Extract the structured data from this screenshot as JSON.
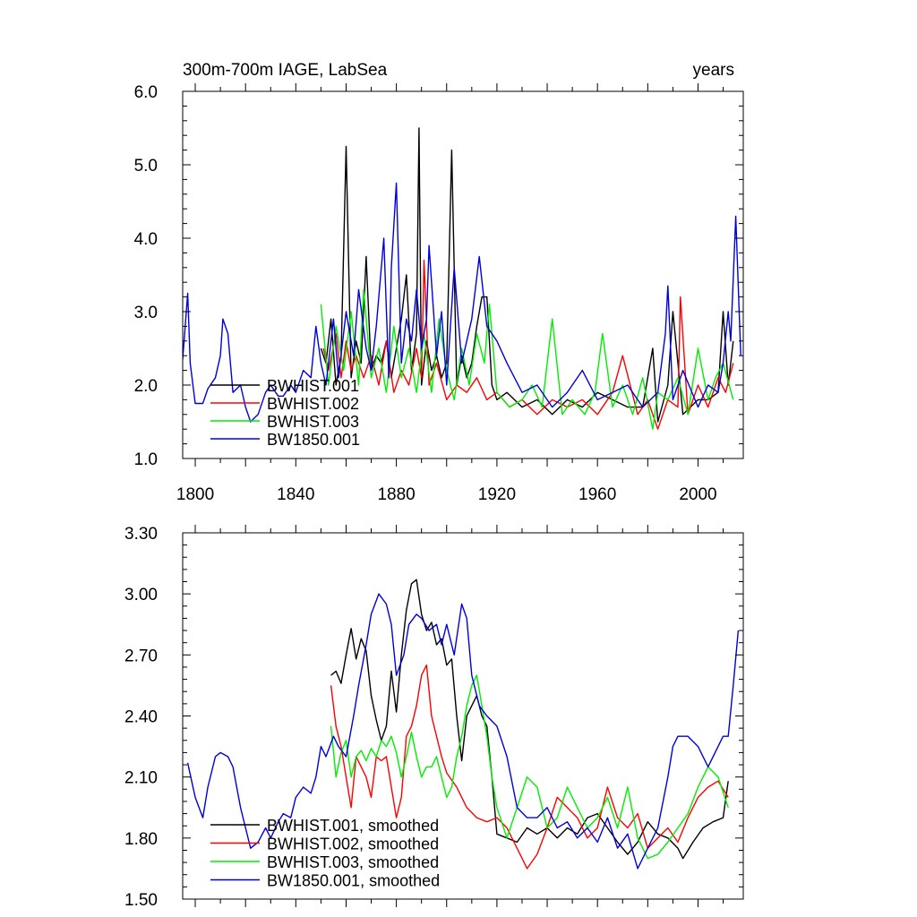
{
  "chart_data": [
    {
      "type": "line",
      "title_left": "300m-700m IAGE, LabSea",
      "title_right": "years",
      "xlim": [
        1795,
        2018
      ],
      "ylim": [
        1.0,
        6.0
      ],
      "yticks": [
        "1.0",
        "2.0",
        "3.0",
        "4.0",
        "5.0",
        "6.0"
      ],
      "xticks": [
        "1800",
        "1840",
        "1880",
        "1920",
        "1960",
        "2000"
      ],
      "legend_position": "bottom-left",
      "series": [
        {
          "name": "BWHIST.001",
          "color": "#000000",
          "x": [
            1850,
            1852,
            1854,
            1856,
            1858,
            1860,
            1862,
            1864,
            1866,
            1868,
            1870,
            1872,
            1874,
            1876,
            1878,
            1880,
            1882,
            1884,
            1886,
            1888,
            1889,
            1890,
            1892,
            1894,
            1896,
            1898,
            1900,
            1902,
            1904,
            1906,
            1908,
            1910,
            1912,
            1914,
            1916,
            1918,
            1920,
            1924,
            1930,
            1936,
            1942,
            1948,
            1954,
            1960,
            1966,
            1972,
            1978,
            1982,
            1984,
            1988,
            1990,
            1994,
            2000,
            2004,
            2008,
            2010,
            2012,
            2014
          ],
          "values": [
            2.5,
            2.3,
            2.9,
            2.0,
            2.4,
            5.25,
            2.1,
            2.6,
            2.3,
            3.75,
            2.2,
            2.4,
            2.3,
            2.6,
            2.1,
            2.5,
            2.9,
            3.5,
            2.2,
            2.7,
            5.5,
            2.0,
            2.6,
            2.2,
            2.4,
            2.1,
            2.3,
            5.2,
            2.0,
            2.4,
            2.1,
            2.3,
            2.8,
            3.2,
            3.2,
            2.0,
            1.8,
            1.9,
            1.7,
            1.8,
            1.6,
            1.8,
            1.7,
            1.9,
            1.8,
            1.7,
            1.7,
            2.5,
            1.5,
            2.0,
            3.0,
            1.6,
            1.8,
            1.8,
            1.9,
            3.0,
            2.0,
            2.6
          ]
        },
        {
          "name": "BWHIST.002",
          "color": "#ff0000",
          "x": [
            1851,
            1853,
            1856,
            1858,
            1860,
            1862,
            1864,
            1867,
            1870,
            1873,
            1876,
            1879,
            1882,
            1885,
            1888,
            1890,
            1891,
            1893,
            1896,
            1900,
            1904,
            1908,
            1912,
            1916,
            1920,
            1925,
            1930,
            1936,
            1942,
            1948,
            1954,
            1960,
            1966,
            1970,
            1976,
            1980,
            1984,
            1988,
            1992,
            1993,
            1996,
            2000,
            2004,
            2008,
            2011,
            2014
          ],
          "values": [
            2.5,
            2.2,
            2.7,
            2.1,
            2.6,
            2.2,
            2.4,
            2.1,
            2.4,
            2.0,
            2.6,
            1.9,
            2.2,
            2.0,
            2.5,
            2.1,
            3.7,
            2.0,
            2.3,
            1.8,
            2.0,
            1.9,
            2.1,
            1.8,
            1.9,
            1.7,
            1.8,
            1.6,
            1.8,
            1.7,
            1.8,
            1.6,
            1.9,
            2.4,
            1.6,
            1.8,
            1.4,
            1.8,
            1.7,
            3.2,
            1.6,
            2.0,
            1.7,
            2.1,
            1.9,
            2.3
          ]
        },
        {
          "name": "BWHIST.003",
          "color": "#00ee00",
          "x": [
            1850,
            1853,
            1856,
            1859,
            1862,
            1865,
            1867,
            1870,
            1873,
            1876,
            1879,
            1882,
            1885,
            1888,
            1891,
            1894,
            1897,
            1900,
            1903,
            1906,
            1909,
            1912,
            1915,
            1917,
            1920,
            1925,
            1930,
            1934,
            1938,
            1942,
            1946,
            1950,
            1955,
            1959,
            1962,
            1966,
            1970,
            1974,
            1978,
            1982,
            1984,
            1988,
            1992,
            1996,
            2000,
            2004,
            2007,
            2010,
            2014
          ],
          "values": [
            3.1,
            2.0,
            2.8,
            2.2,
            3.0,
            2.0,
            3.3,
            2.1,
            2.5,
            1.9,
            2.8,
            2.1,
            2.5,
            1.9,
            2.7,
            1.9,
            2.9,
            2.2,
            1.8,
            2.5,
            2.0,
            2.7,
            2.3,
            3.1,
            1.9,
            1.7,
            1.8,
            2.0,
            1.7,
            2.9,
            1.6,
            1.8,
            1.6,
            1.9,
            2.7,
            1.7,
            2.0,
            1.6,
            2.1,
            1.4,
            1.9,
            1.8,
            2.1,
            1.6,
            2.5,
            1.8,
            2.1,
            2.3,
            1.8
          ]
        },
        {
          "name": "BW1850.001",
          "color": "#0000dd",
          "x": [
            1795,
            1797,
            1798,
            1800,
            1803,
            1805,
            1808,
            1810,
            1811,
            1813,
            1815,
            1818,
            1820,
            1822,
            1825,
            1828,
            1830,
            1833,
            1835,
            1838,
            1840,
            1843,
            1846,
            1848,
            1850,
            1852,
            1855,
            1857,
            1860,
            1863,
            1865,
            1868,
            1870,
            1872,
            1875,
            1877,
            1878,
            1880,
            1882,
            1884,
            1886,
            1888,
            1890,
            1892,
            1893,
            1896,
            1898,
            1900,
            1903,
            1906,
            1908,
            1910,
            1913,
            1916,
            1920,
            1924,
            1930,
            1936,
            1942,
            1948,
            1954,
            1960,
            1966,
            1972,
            1978,
            1984,
            1987,
            1988,
            1990,
            1994,
            2000,
            2004,
            2008,
            2010,
            2012,
            2013,
            2015,
            2017
          ],
          "values": [
            2.35,
            3.25,
            2.3,
            1.75,
            1.75,
            1.95,
            2.1,
            2.4,
            2.9,
            2.7,
            1.9,
            2.0,
            1.7,
            1.5,
            1.6,
            1.9,
            2.0,
            1.85,
            1.85,
            2.0,
            1.9,
            2.2,
            2.1,
            2.8,
            2.3,
            2.0,
            2.9,
            2.1,
            3.0,
            2.4,
            3.3,
            2.5,
            2.2,
            2.8,
            4.0,
            2.1,
            3.6,
            4.75,
            2.3,
            2.9,
            2.6,
            3.3,
            2.5,
            2.9,
            3.9,
            2.4,
            3.0,
            2.0,
            3.6,
            2.3,
            2.6,
            2.9,
            3.75,
            2.8,
            2.6,
            2.3,
            1.9,
            2.0,
            1.7,
            1.9,
            2.2,
            1.8,
            1.9,
            2.0,
            1.7,
            1.9,
            2.7,
            3.35,
            1.8,
            2.2,
            1.7,
            2.0,
            1.9,
            2.3,
            3.0,
            2.6,
            4.3,
            2.4
          ]
        }
      ]
    },
    {
      "type": "line",
      "xlim": [
        1795,
        2018
      ],
      "ylim": [
        1.5,
        3.3
      ],
      "yticks": [
        "1.50",
        "1.80",
        "2.10",
        "2.40",
        "2.70",
        "3.00",
        "3.30"
      ],
      "legend_position": "bottom-left",
      "series": [
        {
          "name": "BWHIST.001, smoothed",
          "color": "#000000",
          "x": [
            1854,
            1856,
            1858,
            1860,
            1862,
            1864,
            1866,
            1868,
            1870,
            1872,
            1874,
            1876,
            1878,
            1880,
            1882,
            1884,
            1886,
            1888,
            1890,
            1892,
            1894,
            1896,
            1898,
            1900,
            1902,
            1904,
            1906,
            1908,
            1910,
            1912,
            1914,
            1916,
            1918,
            1920,
            1924,
            1928,
            1932,
            1936,
            1940,
            1944,
            1948,
            1952,
            1956,
            1960,
            1964,
            1968,
            1972,
            1976,
            1980,
            1984,
            1988,
            1992,
            1994,
            1998,
            2002,
            2006,
            2010,
            2012
          ],
          "values": [
            2.6,
            2.62,
            2.56,
            2.7,
            2.83,
            2.68,
            2.78,
            2.72,
            2.5,
            2.38,
            2.28,
            2.35,
            2.62,
            2.42,
            2.7,
            2.92,
            3.05,
            3.07,
            2.9,
            2.82,
            2.86,
            2.75,
            2.78,
            2.65,
            2.68,
            2.4,
            2.18,
            2.4,
            2.45,
            2.5,
            2.4,
            2.35,
            2.1,
            1.82,
            1.8,
            1.78,
            1.85,
            1.82,
            1.85,
            1.8,
            1.85,
            1.82,
            1.9,
            1.92,
            1.85,
            1.78,
            1.72,
            1.78,
            1.88,
            1.82,
            1.8,
            1.75,
            1.7,
            1.78,
            1.85,
            1.88,
            1.9,
            2.08
          ]
        },
        {
          "name": "BWHIST.002, smoothed",
          "color": "#ff0000",
          "x": [
            1854,
            1856,
            1858,
            1860,
            1862,
            1864,
            1866,
            1868,
            1870,
            1872,
            1874,
            1876,
            1878,
            1880,
            1882,
            1884,
            1886,
            1888,
            1890,
            1892,
            1894,
            1896,
            1898,
            1900,
            1904,
            1908,
            1912,
            1916,
            1920,
            1924,
            1928,
            1932,
            1936,
            1940,
            1944,
            1948,
            1952,
            1956,
            1960,
            1964,
            1968,
            1972,
            1976,
            1980,
            1984,
            1988,
            1992,
            1996,
            2000,
            2004,
            2008,
            2012
          ],
          "values": [
            2.55,
            2.35,
            2.25,
            2.1,
            1.95,
            2.2,
            2.15,
            2.1,
            2.0,
            2.2,
            2.18,
            2.2,
            2.05,
            1.9,
            2.0,
            2.3,
            2.35,
            2.45,
            2.6,
            2.65,
            2.4,
            2.3,
            2.2,
            2.12,
            2.05,
            1.95,
            1.9,
            1.88,
            1.9,
            1.85,
            1.75,
            1.65,
            1.72,
            1.85,
            2.0,
            1.95,
            1.9,
            1.8,
            1.85,
            2.05,
            1.9,
            1.85,
            1.92,
            1.75,
            1.8,
            1.85,
            1.78,
            1.9,
            2.0,
            2.05,
            2.08,
            2.0
          ]
        },
        {
          "name": "BWHIST.003, smoothed",
          "color": "#00ee00",
          "x": [
            1854,
            1856,
            1858,
            1860,
            1862,
            1864,
            1866,
            1868,
            1870,
            1872,
            1874,
            1876,
            1878,
            1880,
            1882,
            1884,
            1886,
            1888,
            1890,
            1892,
            1894,
            1896,
            1898,
            1900,
            1902,
            1904,
            1906,
            1908,
            1910,
            1912,
            1914,
            1916,
            1918,
            1920,
            1924,
            1928,
            1932,
            1936,
            1940,
            1944,
            1948,
            1952,
            1956,
            1960,
            1964,
            1968,
            1972,
            1976,
            1980,
            1984,
            1988,
            1992,
            1996,
            2000,
            2004,
            2008,
            2012
          ],
          "values": [
            2.35,
            2.1,
            2.22,
            2.28,
            2.1,
            2.2,
            2.23,
            2.18,
            2.24,
            2.2,
            2.28,
            2.25,
            2.3,
            2.22,
            2.1,
            2.2,
            2.32,
            2.2,
            2.1,
            2.15,
            2.15,
            2.2,
            2.1,
            2.0,
            2.05,
            2.2,
            2.3,
            2.45,
            2.55,
            2.6,
            2.45,
            2.3,
            2.1,
            1.95,
            1.8,
            1.95,
            2.1,
            2.05,
            1.85,
            1.9,
            2.05,
            1.95,
            1.85,
            1.9,
            2.0,
            1.85,
            2.05,
            1.8,
            1.7,
            1.72,
            1.78,
            1.85,
            1.92,
            2.05,
            2.15,
            2.1,
            1.95
          ]
        },
        {
          "name": "BW1850.001, smoothed",
          "color": "#0000dd",
          "x": [
            1797,
            1800,
            1803,
            1805,
            1808,
            1810,
            1813,
            1815,
            1818,
            1820,
            1822,
            1825,
            1828,
            1830,
            1833,
            1835,
            1838,
            1840,
            1843,
            1846,
            1848,
            1850,
            1852,
            1855,
            1857,
            1860,
            1863,
            1865,
            1868,
            1870,
            1873,
            1876,
            1878,
            1880,
            1883,
            1885,
            1888,
            1890,
            1893,
            1896,
            1898,
            1900,
            1903,
            1906,
            1908,
            1910,
            1913,
            1916,
            1920,
            1924,
            1928,
            1932,
            1936,
            1940,
            1944,
            1948,
            1952,
            1956,
            1960,
            1964,
            1968,
            1972,
            1976,
            1980,
            1984,
            1988,
            1990,
            1992,
            1996,
            2000,
            2004,
            2008,
            2010,
            2012,
            2014,
            2016
          ],
          "values": [
            2.17,
            2.0,
            1.9,
            2.05,
            2.2,
            2.22,
            2.2,
            2.15,
            1.95,
            1.85,
            1.75,
            1.78,
            1.85,
            1.8,
            1.88,
            1.92,
            1.9,
            2.0,
            2.05,
            2.02,
            2.1,
            2.25,
            2.2,
            2.3,
            2.25,
            2.2,
            2.4,
            2.55,
            2.75,
            2.9,
            3.0,
            2.95,
            2.85,
            2.6,
            2.7,
            2.85,
            2.9,
            2.88,
            2.82,
            2.85,
            2.75,
            2.85,
            2.7,
            2.95,
            2.88,
            2.6,
            2.45,
            2.4,
            2.35,
            2.2,
            1.95,
            1.9,
            1.9,
            1.95,
            1.85,
            1.88,
            1.8,
            1.85,
            1.78,
            1.9,
            1.75,
            1.82,
            1.65,
            1.75,
            1.85,
            2.1,
            2.25,
            2.3,
            2.3,
            2.25,
            2.15,
            2.25,
            2.3,
            2.3,
            2.55,
            2.82
          ]
        }
      ]
    }
  ]
}
